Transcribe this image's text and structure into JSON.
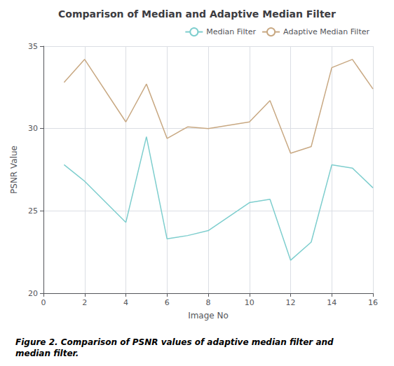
{
  "chart_data": {
    "type": "line",
    "title": "Comparison of Median and Adaptive Median Filter",
    "x_label": "Image No",
    "y_label": "PSNR Value",
    "annotations": [
      "Figure 2. Comparison of PSNR values of adaptive median filter and\nmedian filter."
    ],
    "x": [
      1,
      2,
      4,
      5,
      6,
      7,
      8,
      10,
      11,
      12,
      13,
      14,
      15,
      16
    ],
    "series": [
      {
        "name": "Median Filter",
        "color": "#7ecece",
        "values": [
          27.8,
          26.8,
          24.3,
          29.5,
          23.3,
          23.5,
          23.8,
          25.5,
          25.7,
          22.0,
          23.1,
          27.8,
          27.6,
          26.4
        ]
      },
      {
        "name": "Adaptive Median Filter",
        "color": "#c8a882",
        "values": [
          32.8,
          34.2,
          30.4,
          32.7,
          29.4,
          30.1,
          30.0,
          30.4,
          31.7,
          28.5,
          28.9,
          33.7,
          34.2,
          32.4
        ]
      }
    ],
    "xlim": [
      0,
      16
    ],
    "ylim": [
      20,
      35
    ],
    "xticks": [
      0,
      2,
      4,
      6,
      8,
      10,
      12,
      14,
      16
    ],
    "yticks": [
      20,
      25,
      30,
      35
    ],
    "grid": true,
    "legend": "upper right"
  }
}
